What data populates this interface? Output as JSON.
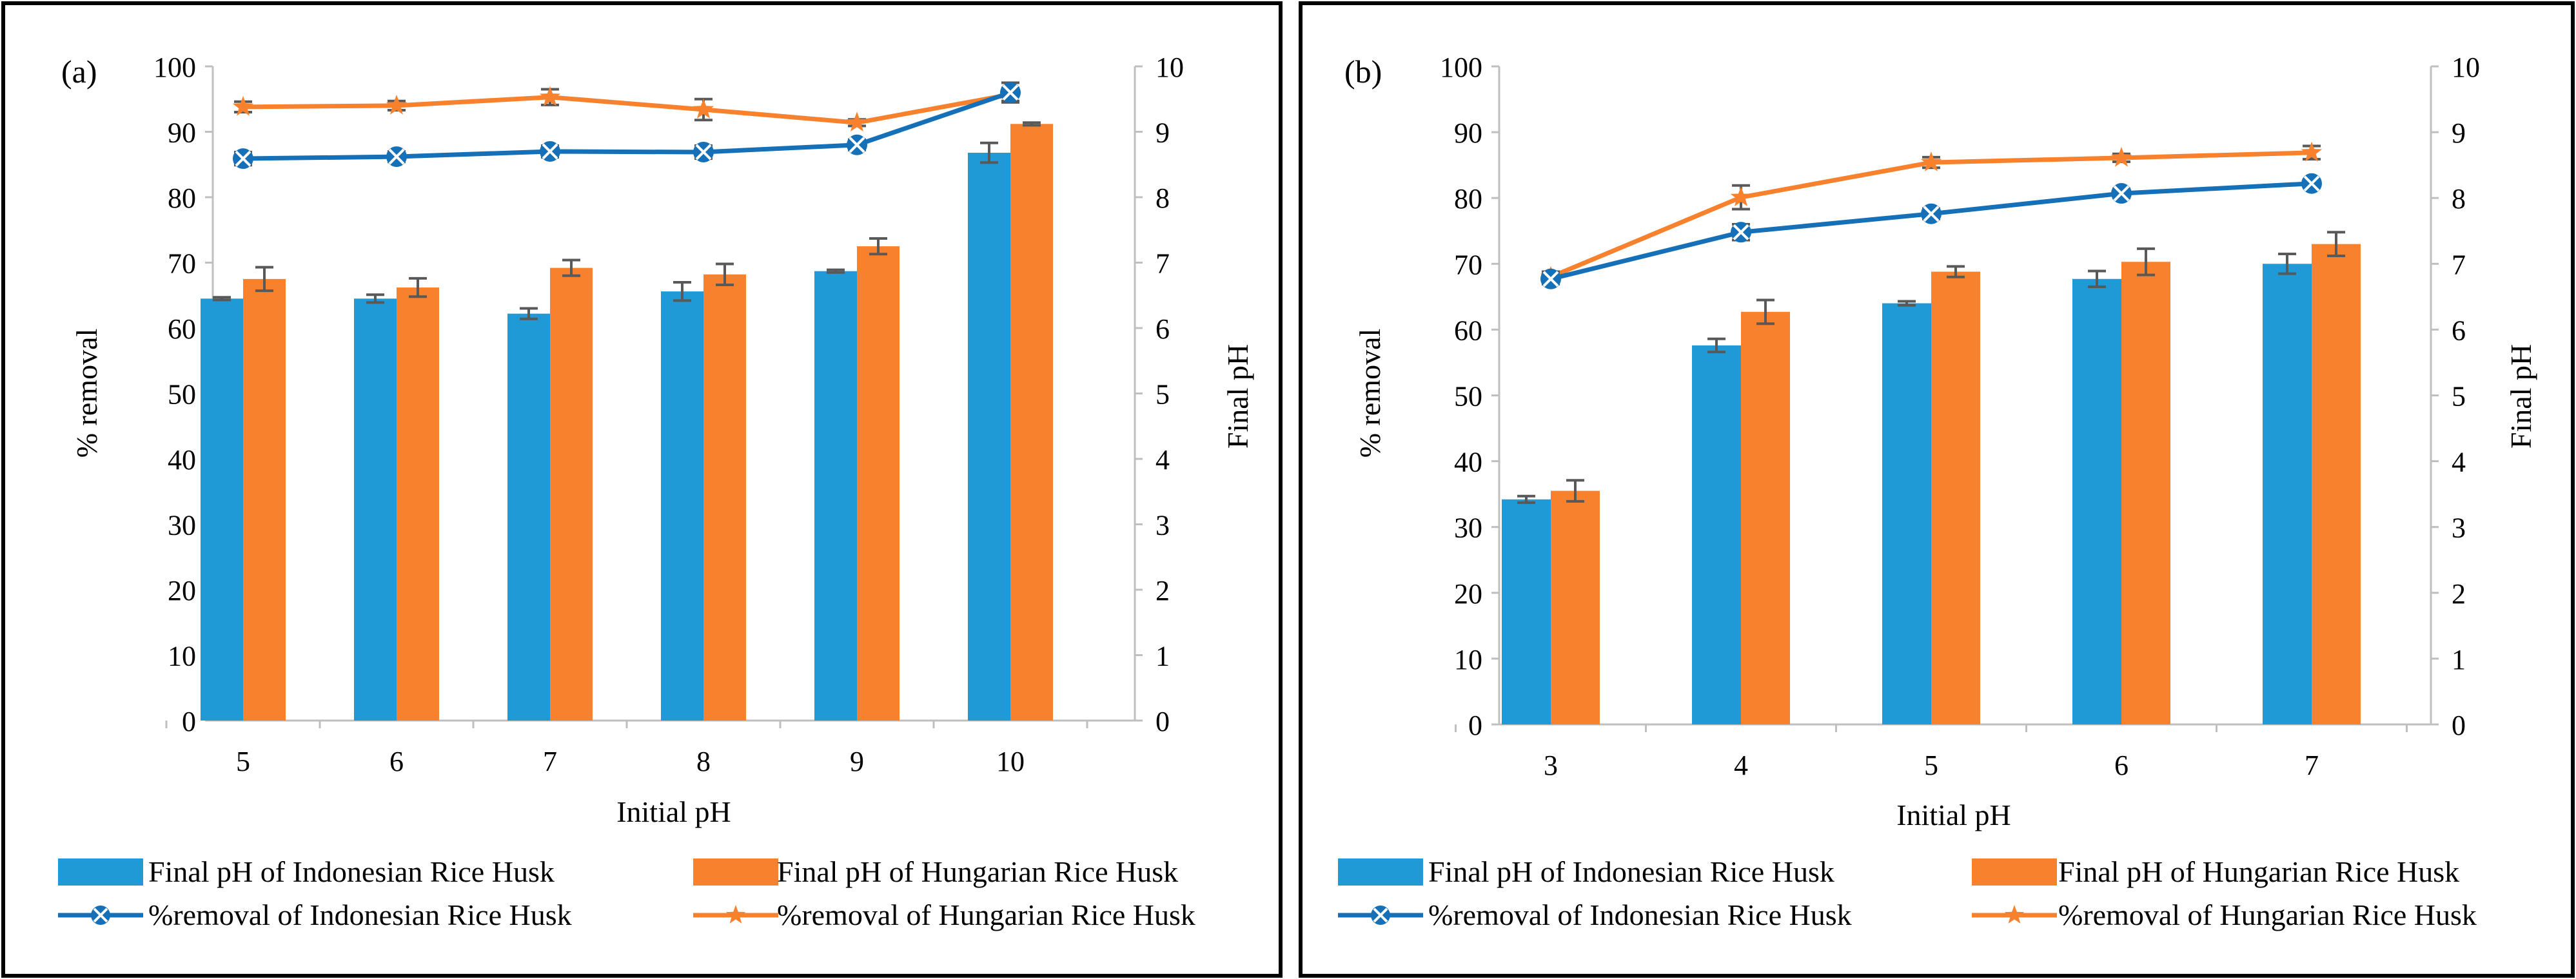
{
  "chart_data": [
    {
      "type": "bar",
      "panel_label": "(a)",
      "categories": [
        "5",
        "6",
        "7",
        "8",
        "9",
        "10"
      ],
      "xlabel": "Initial pH",
      "ylabel": "% removal",
      "y2label": "Final pH",
      "ylim": [
        0,
        100
      ],
      "y2lim": [
        0,
        10
      ],
      "yticks": [
        "0",
        "10",
        "20",
        "30",
        "40",
        "50",
        "60",
        "70",
        "80",
        "90",
        "100"
      ],
      "y2ticks": [
        "0",
        "1",
        "2",
        "3",
        "4",
        "5",
        "6",
        "7",
        "8",
        "9",
        "10"
      ],
      "grid": false,
      "legend_position": "bottom",
      "series": [
        {
          "name": "Final pH of Indonesian Rice Husk",
          "kind": "bar",
          "axis": "right",
          "color": "#1f9ad6",
          "values": [
            6.45,
            6.45,
            6.22,
            6.56,
            6.87,
            8.68
          ],
          "errors": [
            0.02,
            0.06,
            0.08,
            0.14,
            0.02,
            0.15
          ]
        },
        {
          "name": "Final pH of Hungarian Rice Husk",
          "kind": "bar",
          "axis": "right",
          "color": "#f7812d",
          "values": [
            6.75,
            6.62,
            6.92,
            6.82,
            7.25,
            9.12
          ],
          "errors": [
            0.18,
            0.14,
            0.12,
            0.16,
            0.12,
            0.02
          ]
        },
        {
          "name": "%removal of Indonesian Rice Husk",
          "kind": "line",
          "axis": "left",
          "color": "#1670b8",
          "marker": "x",
          "values": [
            85.9,
            86.2,
            87.0,
            86.9,
            88.0,
            96.0
          ],
          "errors": [
            1.0,
            0.8,
            0.9,
            1.0,
            0.8,
            1.5
          ]
        },
        {
          "name": "%removal of Hungarian Rice Husk",
          "kind": "line",
          "axis": "left",
          "color": "#f7812d",
          "marker": "star",
          "values": [
            93.8,
            94.0,
            95.3,
            93.4,
            91.4,
            95.7
          ],
          "errors": [
            0.8,
            0.7,
            1.2,
            1.6,
            0.5,
            1.0
          ]
        }
      ]
    },
    {
      "type": "bar",
      "panel_label": "(b)",
      "categories": [
        "3",
        "4",
        "5",
        "6",
        "7"
      ],
      "xlabel": "Initial pH",
      "ylabel": "% removal",
      "y2label": "Final pH",
      "ylim": [
        0,
        100
      ],
      "y2lim": [
        0,
        10
      ],
      "yticks": [
        "0",
        "10",
        "20",
        "30",
        "40",
        "50",
        "60",
        "70",
        "80",
        "90",
        "100"
      ],
      "y2ticks": [
        "0",
        "1",
        "2",
        "3",
        "4",
        "5",
        "6",
        "7",
        "8",
        "9",
        "10"
      ],
      "grid": false,
      "legend_position": "bottom",
      "series": [
        {
          "name": "Final pH of Indonesian Rice Husk",
          "kind": "bar",
          "axis": "right",
          "color": "#1f9ad6",
          "values": [
            3.42,
            5.76,
            6.4,
            6.77,
            7.0
          ],
          "errors": [
            0.05,
            0.1,
            0.03,
            0.12,
            0.15
          ]
        },
        {
          "name": "Final pH of Hungarian Rice Husk",
          "kind": "bar",
          "axis": "right",
          "color": "#f7812d",
          "values": [
            3.55,
            6.27,
            6.88,
            7.03,
            7.3
          ],
          "errors": [
            0.16,
            0.18,
            0.08,
            0.2,
            0.18
          ]
        },
        {
          "name": "%removal of Indonesian Rice Husk",
          "kind": "line",
          "axis": "left",
          "color": "#1670b8",
          "marker": "x",
          "values": [
            67.7,
            74.8,
            77.6,
            80.7,
            82.2
          ],
          "errors": [
            0.8,
            1.2,
            0.8,
            0.7,
            0.6
          ]
        },
        {
          "name": "%removal of Hungarian Rice Husk",
          "kind": "line",
          "axis": "left",
          "color": "#f7812d",
          "marker": "star",
          "values": [
            68.0,
            80.1,
            85.4,
            86.1,
            86.9
          ],
          "errors": [
            0.8,
            1.8,
            0.8,
            0.6,
            1.0
          ]
        }
      ]
    }
  ]
}
